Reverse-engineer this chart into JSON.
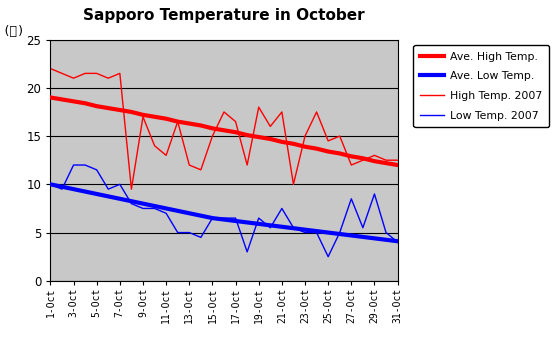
{
  "title": "Sapporo Temperature in October",
  "unit_label": "(℃)",
  "background_color": "#c8c8c8",
  "fig_bg": "#ffffff",
  "ylim": [
    0,
    25
  ],
  "yticks": [
    0,
    5,
    10,
    15,
    20,
    25
  ],
  "days": [
    1,
    2,
    3,
    4,
    5,
    6,
    7,
    8,
    9,
    10,
    11,
    12,
    13,
    14,
    15,
    16,
    17,
    18,
    19,
    20,
    21,
    22,
    23,
    24,
    25,
    26,
    27,
    28,
    29,
    30,
    31
  ],
  "xlabels": [
    "1-Oct",
    "3-Oct",
    "5-Oct",
    "7-Oct",
    "9-Oct",
    "11-Oct",
    "13-Oct",
    "15-Oct",
    "17-Oct",
    "19-Oct",
    "21-Oct",
    "23-Oct",
    "25-Oct",
    "27-Oct",
    "29-Oct",
    "31-Oct"
  ],
  "xtick_days": [
    1,
    3,
    5,
    7,
    9,
    11,
    13,
    15,
    17,
    19,
    21,
    23,
    25,
    27,
    29,
    31
  ],
  "ave_high": [
    19.0,
    18.8,
    18.6,
    18.4,
    18.1,
    17.9,
    17.7,
    17.5,
    17.2,
    17.0,
    16.8,
    16.5,
    16.3,
    16.1,
    15.8,
    15.6,
    15.4,
    15.1,
    14.9,
    14.7,
    14.4,
    14.2,
    13.9,
    13.7,
    13.4,
    13.2,
    12.9,
    12.7,
    12.4,
    12.2,
    12.0
  ],
  "ave_low": [
    10.0,
    9.75,
    9.5,
    9.25,
    9.0,
    8.75,
    8.5,
    8.25,
    8.0,
    7.75,
    7.5,
    7.25,
    7.0,
    6.75,
    6.5,
    6.35,
    6.2,
    6.05,
    5.9,
    5.75,
    5.6,
    5.45,
    5.3,
    5.15,
    5.0,
    4.85,
    4.7,
    4.55,
    4.4,
    4.25,
    4.1
  ],
  "high_2007": [
    22.0,
    21.5,
    21.0,
    21.5,
    21.5,
    21.0,
    21.5,
    9.5,
    17.0,
    14.0,
    13.0,
    16.5,
    12.0,
    11.5,
    15.0,
    17.5,
    16.5,
    12.0,
    18.0,
    16.0,
    17.5,
    10.0,
    15.0,
    17.5,
    14.5,
    15.0,
    12.0,
    12.5,
    13.0,
    12.5,
    12.5
  ],
  "low_2007": [
    10.0,
    9.5,
    12.0,
    12.0,
    11.5,
    9.5,
    10.0,
    8.0,
    7.5,
    7.5,
    7.0,
    5.0,
    5.0,
    4.5,
    6.5,
    6.5,
    6.5,
    3.0,
    6.5,
    5.5,
    7.5,
    5.5,
    5.0,
    5.0,
    2.5,
    5.0,
    8.5,
    5.5,
    9.0,
    5.0,
    4.0
  ],
  "ave_high_color": "#ff0000",
  "ave_low_color": "#0000ff",
  "high_2007_color": "#ff0000",
  "low_2007_color": "#0000ff",
  "ave_high_lw": 3.0,
  "ave_low_lw": 3.0,
  "data_2007_lw": 1.0,
  "legend_labels": [
    "Ave. High Temp.",
    "Ave. Low Temp.",
    "High Temp. 2007",
    "Low Temp. 2007"
  ]
}
